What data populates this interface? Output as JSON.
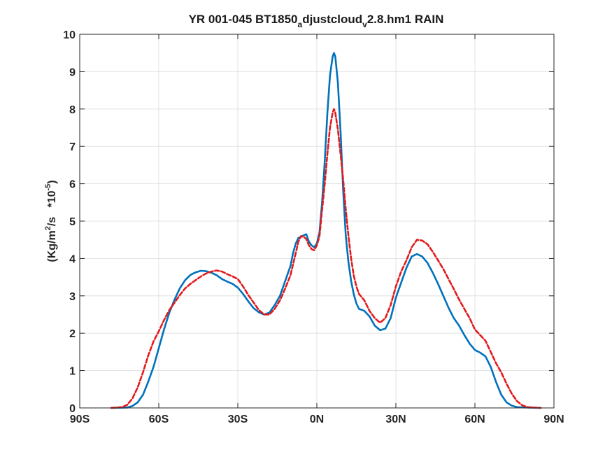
{
  "chart_data": {
    "type": "line",
    "title": {
      "main": "YR 001-045 BT1850",
      "sub1": "a",
      "mid": "djustcloud",
      "sub2": "v",
      "tail": "2.8.hm1 RAIN"
    },
    "xlabel": "",
    "ylabel": {
      "pre": "(Kg/m",
      "sup1": "2",
      "mid": "/s   *10",
      "sup2": "-5",
      "post": ")"
    },
    "xlim": [
      -90,
      90
    ],
    "ylim": [
      0,
      10
    ],
    "grid": true,
    "x_ticks": [
      -90,
      -60,
      -30,
      0,
      30,
      60,
      90
    ],
    "x_tick_labels": [
      "90S",
      "60S",
      "30S",
      "0N",
      "30N",
      "60N",
      "90N"
    ],
    "y_ticks": [
      0,
      1,
      2,
      3,
      4,
      5,
      6,
      7,
      8,
      9,
      10
    ],
    "y_tick_labels": [
      "0",
      "1",
      "2",
      "3",
      "4",
      "5",
      "6",
      "7",
      "8",
      "9",
      "10"
    ],
    "series": [
      {
        "color": "#0072bd",
        "style": "solid",
        "points": [
          [
            -78,
            0
          ],
          [
            -72,
            0.01
          ],
          [
            -70,
            0.05
          ],
          [
            -68,
            0.15
          ],
          [
            -66,
            0.35
          ],
          [
            -64,
            0.7
          ],
          [
            -62,
            1.1
          ],
          [
            -60,
            1.6
          ],
          [
            -58,
            2.1
          ],
          [
            -56,
            2.55
          ],
          [
            -54,
            2.9
          ],
          [
            -52,
            3.2
          ],
          [
            -50,
            3.42
          ],
          [
            -48,
            3.56
          ],
          [
            -46,
            3.63
          ],
          [
            -44,
            3.67
          ],
          [
            -42,
            3.66
          ],
          [
            -40,
            3.62
          ],
          [
            -38,
            3.55
          ],
          [
            -36,
            3.45
          ],
          [
            -34,
            3.38
          ],
          [
            -32,
            3.32
          ],
          [
            -30,
            3.22
          ],
          [
            -28,
            3.05
          ],
          [
            -26,
            2.85
          ],
          [
            -24,
            2.67
          ],
          [
            -22,
            2.56
          ],
          [
            -20,
            2.5
          ],
          [
            -18,
            2.55
          ],
          [
            -16,
            2.75
          ],
          [
            -14,
            3.0
          ],
          [
            -12,
            3.4
          ],
          [
            -10,
            3.8
          ],
          [
            -9,
            4.15
          ],
          [
            -8,
            4.4
          ],
          [
            -7,
            4.55
          ],
          [
            -6,
            4.58
          ],
          [
            -5,
            4.62
          ],
          [
            -4,
            4.65
          ],
          [
            -3,
            4.45
          ],
          [
            -2,
            4.35
          ],
          [
            -1,
            4.3
          ],
          [
            0,
            4.4
          ],
          [
            1,
            4.7
          ],
          [
            2,
            5.5
          ],
          [
            3,
            6.6
          ],
          [
            4,
            7.9
          ],
          [
            5,
            8.9
          ],
          [
            6,
            9.4
          ],
          [
            6.5,
            9.5
          ],
          [
            7,
            9.4
          ],
          [
            8,
            8.7
          ],
          [
            9,
            7.4
          ],
          [
            10,
            5.8
          ],
          [
            11,
            4.6
          ],
          [
            12,
            3.9
          ],
          [
            13,
            3.4
          ],
          [
            14,
            3.05
          ],
          [
            15,
            2.8
          ],
          [
            16,
            2.65
          ],
          [
            18,
            2.6
          ],
          [
            20,
            2.45
          ],
          [
            22,
            2.2
          ],
          [
            24,
            2.08
          ],
          [
            26,
            2.12
          ],
          [
            28,
            2.4
          ],
          [
            30,
            2.95
          ],
          [
            32,
            3.35
          ],
          [
            34,
            3.75
          ],
          [
            36,
            4.05
          ],
          [
            38,
            4.12
          ],
          [
            40,
            4.05
          ],
          [
            42,
            3.88
          ],
          [
            44,
            3.62
          ],
          [
            46,
            3.32
          ],
          [
            48,
            3.0
          ],
          [
            50,
            2.68
          ],
          [
            52,
            2.4
          ],
          [
            54,
            2.2
          ],
          [
            56,
            1.95
          ],
          [
            58,
            1.72
          ],
          [
            60,
            1.55
          ],
          [
            62,
            1.48
          ],
          [
            64,
            1.38
          ],
          [
            66,
            1.1
          ],
          [
            68,
            0.7
          ],
          [
            70,
            0.35
          ],
          [
            72,
            0.15
          ],
          [
            74,
            0.06
          ],
          [
            76,
            0.02
          ],
          [
            80,
            0.01
          ],
          [
            85,
            0
          ]
        ]
      },
      {
        "color": "#e31a1c",
        "style": "dashed",
        "points": [
          [
            -78,
            0
          ],
          [
            -74,
            0.02
          ],
          [
            -72,
            0.08
          ],
          [
            -70,
            0.25
          ],
          [
            -68,
            0.55
          ],
          [
            -66,
            0.95
          ],
          [
            -64,
            1.4
          ],
          [
            -62,
            1.78
          ],
          [
            -60,
            2.05
          ],
          [
            -58,
            2.35
          ],
          [
            -56,
            2.62
          ],
          [
            -54,
            2.82
          ],
          [
            -52,
            3.02
          ],
          [
            -50,
            3.2
          ],
          [
            -48,
            3.32
          ],
          [
            -46,
            3.42
          ],
          [
            -44,
            3.52
          ],
          [
            -42,
            3.6
          ],
          [
            -40,
            3.65
          ],
          [
            -38,
            3.68
          ],
          [
            -36,
            3.65
          ],
          [
            -34,
            3.58
          ],
          [
            -32,
            3.52
          ],
          [
            -30,
            3.45
          ],
          [
            -28,
            3.25
          ],
          [
            -26,
            3.02
          ],
          [
            -24,
            2.82
          ],
          [
            -22,
            2.62
          ],
          [
            -20,
            2.5
          ],
          [
            -18,
            2.5
          ],
          [
            -16,
            2.65
          ],
          [
            -14,
            2.88
          ],
          [
            -12,
            3.2
          ],
          [
            -10,
            3.55
          ],
          [
            -9,
            3.85
          ],
          [
            -8,
            4.15
          ],
          [
            -7,
            4.45
          ],
          [
            -6,
            4.6
          ],
          [
            -5,
            4.58
          ],
          [
            -4,
            4.52
          ],
          [
            -3,
            4.35
          ],
          [
            -2,
            4.25
          ],
          [
            -1,
            4.22
          ],
          [
            0,
            4.35
          ],
          [
            1,
            4.6
          ],
          [
            2,
            5.3
          ],
          [
            3,
            6.0
          ],
          [
            4,
            6.8
          ],
          [
            5,
            7.5
          ],
          [
            6,
            7.9
          ],
          [
            6.5,
            8.0
          ],
          [
            7,
            7.9
          ],
          [
            8,
            7.45
          ],
          [
            9,
            6.8
          ],
          [
            10,
            6.1
          ],
          [
            11,
            5.3
          ],
          [
            12,
            4.6
          ],
          [
            13,
            4.0
          ],
          [
            14,
            3.55
          ],
          [
            15,
            3.25
          ],
          [
            16,
            3.05
          ],
          [
            18,
            2.88
          ],
          [
            20,
            2.6
          ],
          [
            22,
            2.4
          ],
          [
            24,
            2.28
          ],
          [
            26,
            2.4
          ],
          [
            28,
            2.75
          ],
          [
            30,
            3.25
          ],
          [
            32,
            3.65
          ],
          [
            34,
            3.95
          ],
          [
            36,
            4.3
          ],
          [
            38,
            4.5
          ],
          [
            40,
            4.48
          ],
          [
            42,
            4.38
          ],
          [
            44,
            4.18
          ],
          [
            46,
            3.95
          ],
          [
            48,
            3.72
          ],
          [
            50,
            3.45
          ],
          [
            52,
            3.18
          ],
          [
            54,
            2.9
          ],
          [
            56,
            2.65
          ],
          [
            58,
            2.4
          ],
          [
            60,
            2.1
          ],
          [
            62,
            1.95
          ],
          [
            64,
            1.8
          ],
          [
            66,
            1.5
          ],
          [
            68,
            1.2
          ],
          [
            70,
            0.95
          ],
          [
            72,
            0.65
          ],
          [
            74,
            0.38
          ],
          [
            76,
            0.18
          ],
          [
            78,
            0.07
          ],
          [
            80,
            0.02
          ],
          [
            85,
            0
          ]
        ]
      }
    ]
  }
}
